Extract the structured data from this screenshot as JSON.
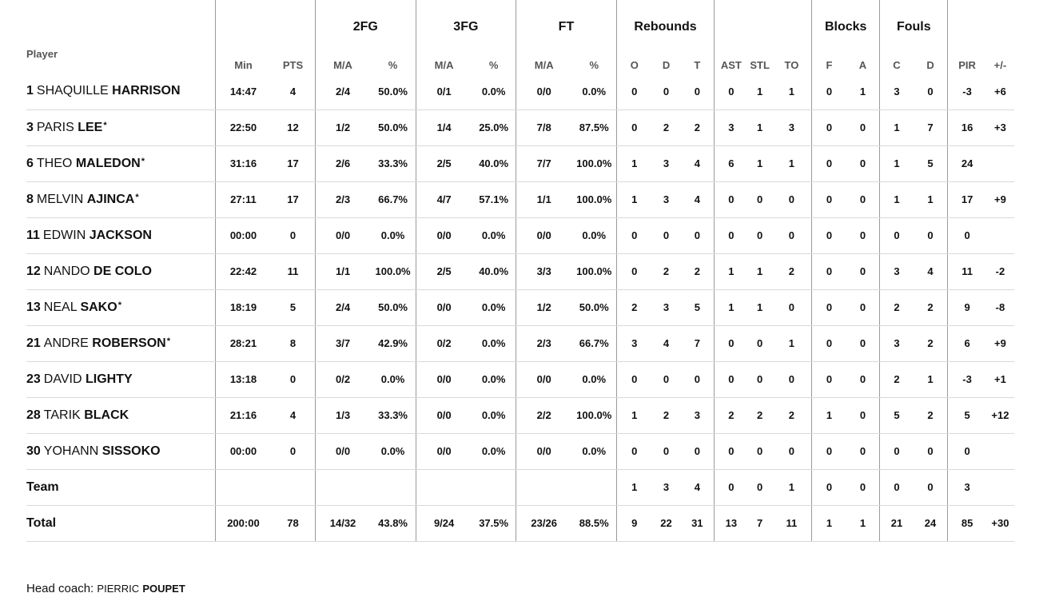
{
  "headers": {
    "player": "Player",
    "groups": {
      "fg2": "2FG",
      "fg3": "3FG",
      "ft": "FT",
      "rebounds": "Rebounds",
      "blocks": "Blocks",
      "fouls": "Fouls"
    },
    "cols": [
      "Min",
      "PTS",
      "M/A",
      "%",
      "M/A",
      "%",
      "M/A",
      "%",
      "O",
      "D",
      "T",
      "AST",
      "STL",
      "TO",
      "F",
      "A",
      "C",
      "D",
      "PIR",
      "+/-"
    ]
  },
  "players": [
    {
      "num": "1",
      "first": "SHAQUILLE",
      "last": "HARRISON",
      "starter": false,
      "stats": [
        "14:47",
        "4",
        "2/4",
        "50.0%",
        "0/1",
        "0.0%",
        "0/0",
        "0.0%",
        "0",
        "0",
        "0",
        "0",
        "1",
        "1",
        "0",
        "1",
        "3",
        "0",
        "-3",
        "+6"
      ]
    },
    {
      "num": "3",
      "first": "PARIS",
      "last": "LEE",
      "starter": true,
      "stats": [
        "22:50",
        "12",
        "1/2",
        "50.0%",
        "1/4",
        "25.0%",
        "7/8",
        "87.5%",
        "0",
        "2",
        "2",
        "3",
        "1",
        "3",
        "0",
        "0",
        "1",
        "7",
        "16",
        "+3"
      ]
    },
    {
      "num": "6",
      "first": "THEO",
      "last": "MALEDON",
      "starter": true,
      "stats": [
        "31:16",
        "17",
        "2/6",
        "33.3%",
        "2/5",
        "40.0%",
        "7/7",
        "100.0%",
        "1",
        "3",
        "4",
        "6",
        "1",
        "1",
        "0",
        "0",
        "1",
        "5",
        "24",
        ""
      ]
    },
    {
      "num": "8",
      "first": "MELVIN",
      "last": "AJINCA",
      "starter": true,
      "stats": [
        "27:11",
        "17",
        "2/3",
        "66.7%",
        "4/7",
        "57.1%",
        "1/1",
        "100.0%",
        "1",
        "3",
        "4",
        "0",
        "0",
        "0",
        "0",
        "0",
        "1",
        "1",
        "17",
        "+9"
      ]
    },
    {
      "num": "11",
      "first": "EDWIN",
      "last": "JACKSON",
      "starter": false,
      "stats": [
        "00:00",
        "0",
        "0/0",
        "0.0%",
        "0/0",
        "0.0%",
        "0/0",
        "0.0%",
        "0",
        "0",
        "0",
        "0",
        "0",
        "0",
        "0",
        "0",
        "0",
        "0",
        "0",
        ""
      ]
    },
    {
      "num": "12",
      "first": "NANDO",
      "last": "DE COLO",
      "starter": false,
      "stats": [
        "22:42",
        "11",
        "1/1",
        "100.0%",
        "2/5",
        "40.0%",
        "3/3",
        "100.0%",
        "0",
        "2",
        "2",
        "1",
        "1",
        "2",
        "0",
        "0",
        "3",
        "4",
        "11",
        "-2"
      ]
    },
    {
      "num": "13",
      "first": "NEAL",
      "last": "SAKO",
      "starter": true,
      "stats": [
        "18:19",
        "5",
        "2/4",
        "50.0%",
        "0/0",
        "0.0%",
        "1/2",
        "50.0%",
        "2",
        "3",
        "5",
        "1",
        "1",
        "0",
        "0",
        "0",
        "2",
        "2",
        "9",
        "-8"
      ]
    },
    {
      "num": "21",
      "first": "ANDRE",
      "last": "ROBERSON",
      "starter": true,
      "stats": [
        "28:21",
        "8",
        "3/7",
        "42.9%",
        "0/2",
        "0.0%",
        "2/3",
        "66.7%",
        "3",
        "4",
        "7",
        "0",
        "0",
        "1",
        "0",
        "0",
        "3",
        "2",
        "6",
        "+9"
      ]
    },
    {
      "num": "23",
      "first": "DAVID",
      "last": "LIGHTY",
      "starter": false,
      "stats": [
        "13:18",
        "0",
        "0/2",
        "0.0%",
        "0/0",
        "0.0%",
        "0/0",
        "0.0%",
        "0",
        "0",
        "0",
        "0",
        "0",
        "0",
        "0",
        "0",
        "2",
        "1",
        "-3",
        "+1"
      ]
    },
    {
      "num": "28",
      "first": "TARIK",
      "last": "BLACK",
      "starter": false,
      "stats": [
        "21:16",
        "4",
        "1/3",
        "33.3%",
        "0/0",
        "0.0%",
        "2/2",
        "100.0%",
        "1",
        "2",
        "3",
        "2",
        "2",
        "2",
        "1",
        "0",
        "5",
        "2",
        "5",
        "+12"
      ]
    },
    {
      "num": "30",
      "first": "YOHANN",
      "last": "SISSOKO",
      "starter": false,
      "stats": [
        "00:00",
        "0",
        "0/0",
        "0.0%",
        "0/0",
        "0.0%",
        "0/0",
        "0.0%",
        "0",
        "0",
        "0",
        "0",
        "0",
        "0",
        "0",
        "0",
        "0",
        "0",
        "0",
        ""
      ]
    }
  ],
  "team": {
    "label": "Team",
    "stats": [
      "",
      "",
      "",
      "",
      "",
      "",
      "",
      "",
      "1",
      "3",
      "4",
      "0",
      "0",
      "1",
      "0",
      "0",
      "0",
      "0",
      "3",
      ""
    ]
  },
  "total": {
    "label": "Total",
    "stats": [
      "200:00",
      "78",
      "14/32",
      "43.8%",
      "9/24",
      "37.5%",
      "23/26",
      "88.5%",
      "9",
      "22",
      "31",
      "13",
      "7",
      "11",
      "1",
      "1",
      "21",
      "24",
      "85",
      "+30"
    ]
  },
  "coach": {
    "label": "Head coach:",
    "first": "PIERRIC",
    "last": "POUPET"
  },
  "star_symbol": "*"
}
